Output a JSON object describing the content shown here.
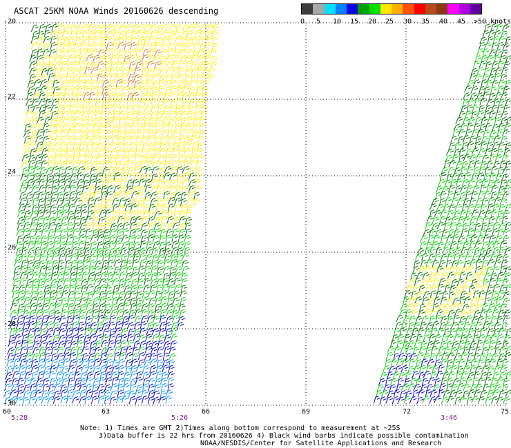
{
  "title": "ASCAT 25KM NOAA Winds 20160626 descending",
  "colorbar": {
    "labels": [
      "0",
      "5",
      "10",
      "15",
      "20",
      "25",
      "30",
      "35",
      "40",
      "45",
      ">50 knots"
    ],
    "colors": [
      "#3c3c3c",
      "#a8a8a8",
      "#00e0ff",
      "#0080ff",
      "#0000e0",
      "#00a000",
      "#00e000",
      "#ffe800",
      "#ffb000",
      "#ff5000",
      "#ff0000",
      "#b84a20",
      "#8a3a10",
      "#ff00ff",
      "#b000e0",
      "#6000a0"
    ]
  },
  "map": {
    "lat_labels": [
      "-20",
      "-22",
      "-24",
      "-26",
      "-28",
      "-30"
    ],
    "lon_labels": [
      "60",
      "63",
      "66",
      "69",
      "72",
      "75"
    ],
    "time_labels": [
      "5:28",
      "5:26",
      "3:46"
    ],
    "lat_range": [
      -30,
      -20
    ],
    "lon_range": [
      60,
      75
    ],
    "grid": "dotted"
  },
  "notes": {
    "line1": "Note: 1) Times are GMT 2)Times along bottom correspond to measurement at ~25S",
    "line2": "3)Data buffer is 22 hrs from 20160626 4) Black wind barbs indicate possible contamination",
    "line3": "NOAA/NESDIS/Center for Satellite Applications and Research"
  },
  "wind_colors": {
    "blue": "#0000c8",
    "light_blue": "#0090ff",
    "green": "#00d000",
    "dark_green": "#007000",
    "yellow": "#ffee00",
    "orange": "#cc7a30"
  }
}
